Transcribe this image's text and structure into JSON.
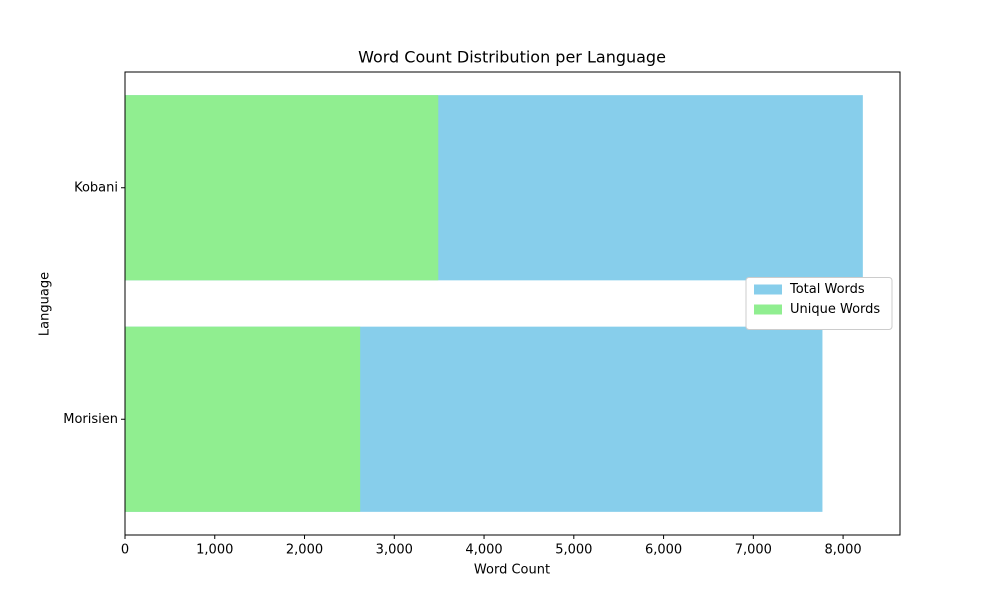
{
  "chart_data": {
    "type": "barh",
    "title": "Word Count Distribution per Language",
    "x_label": "Word Count",
    "y_label": "Language",
    "categories": [
      "Kobani",
      "Morisien"
    ],
    "series": [
      {
        "name": "Total Words",
        "color": "#87ceeb",
        "values": [
          8220,
          7770
        ]
      },
      {
        "name": "Unique Words",
        "color": "#90ee90",
        "values": [
          3490,
          2620
        ]
      }
    ],
    "xlim": [
      0,
      8634
    ],
    "xticks": [
      0,
      {
        "value": 1000,
        "label": "1,000"
      },
      {
        "value": 2000,
        "label": "2,000"
      },
      {
        "value": 3000,
        "label": "3,000"
      },
      {
        "value": 4000,
        "label": "4,000"
      },
      {
        "value": 5000,
        "label": "5,000"
      },
      {
        "value": 6000,
        "label": "6,000"
      },
      {
        "value": 7000,
        "label": "7,000"
      },
      {
        "value": 8000,
        "label": "8,000"
      }
    ],
    "legend": "center right"
  }
}
